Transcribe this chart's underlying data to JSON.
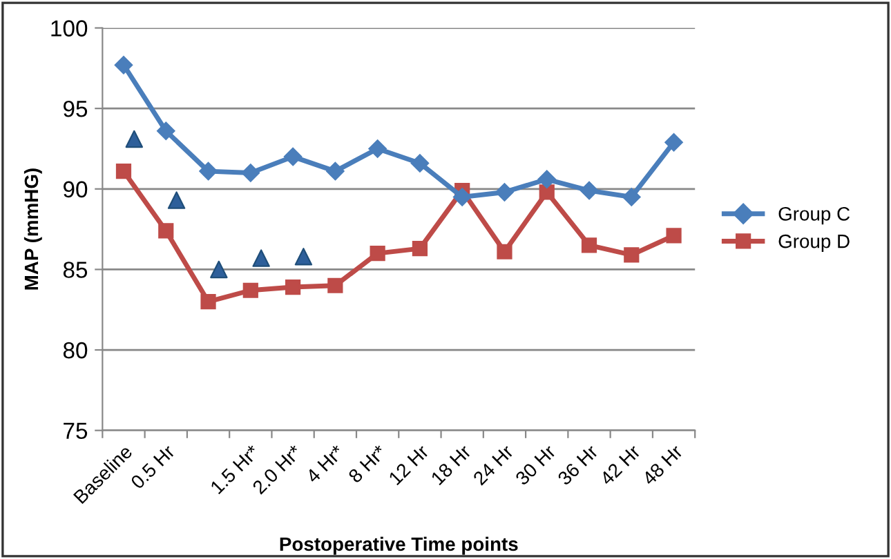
{
  "chart_data": {
    "type": "line",
    "xlabel": "Postoperative Time points",
    "ylabel": "MAP (mmHG)",
    "categories": [
      "Baseline",
      "0.5 Hr",
      null,
      "1.5 Hr*",
      "2.0 Hr*",
      "4 Hr*",
      "8 Hr*",
      "12 Hr",
      "18 Hr",
      "24 Hr",
      "30 Hr",
      "36 Hr",
      "42 Hr",
      "48 Hr"
    ],
    "series": [
      {
        "name": "Group C",
        "color": "#4a7ebb",
        "marker": "diamond",
        "values": [
          97.7,
          93.6,
          91.1,
          91.0,
          92.0,
          91.1,
          92.5,
          91.6,
          89.5,
          89.8,
          90.6,
          89.9,
          89.5,
          92.9
        ]
      },
      {
        "name": "Group D",
        "color": "#be4b48",
        "marker": "square",
        "values": [
          91.1,
          87.4,
          83.0,
          83.7,
          83.9,
          84.0,
          86.0,
          86.3,
          89.9,
          86.1,
          89.8,
          86.5,
          85.9,
          87.1
        ]
      },
      {
        "type": "scatter",
        "color": "#2e5f9a",
        "marker": "triangle",
        "values": [
          93.1,
          89.3,
          85.0,
          85.7,
          85.8,
          null,
          null,
          null,
          null,
          null,
          null,
          null,
          null,
          null
        ]
      }
    ],
    "ylim": [
      75,
      100
    ],
    "yticks": [
      75,
      80,
      85,
      90,
      95,
      100
    ],
    "grid": "y",
    "legend": "right"
  }
}
